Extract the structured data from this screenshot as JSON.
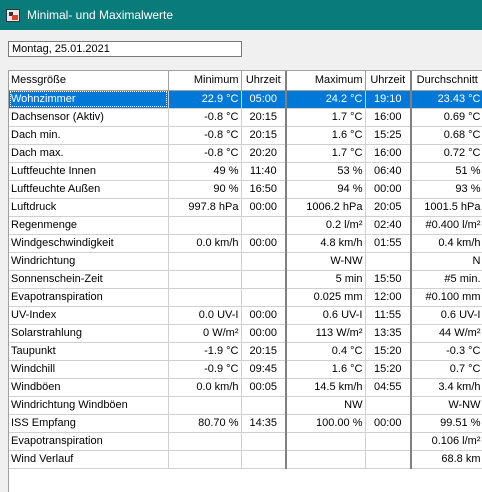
{
  "window": {
    "title": "Minimal- und Maximalwerte"
  },
  "date_field": {
    "value": "Montag, 25.01.2021"
  },
  "table": {
    "headers": {
      "name": "Messgröße",
      "min": "Minimum",
      "min_time": "Uhrzeit",
      "max": "Maximum",
      "max_time": "Uhrzeit",
      "avg": "Durchschnitt"
    },
    "rows": [
      {
        "name": "Wohnzimmer",
        "min": "22.9 °C",
        "min_time": "05:00",
        "max": "24.2 °C",
        "max_time": "19:10",
        "avg": "23.43 °C",
        "selected": true
      },
      {
        "name": "Dachsensor (Aktiv)",
        "min": "-0.8 °C",
        "min_time": "20:15",
        "max": "1.7 °C",
        "max_time": "16:00",
        "avg": "0.69 °C"
      },
      {
        "name": "Dach min.",
        "min": "-0.8 °C",
        "min_time": "20:15",
        "max": "1.6 °C",
        "max_time": "15:25",
        "avg": "0.68 °C"
      },
      {
        "name": "Dach max.",
        "min": "-0.8 °C",
        "min_time": "20:20",
        "max": "1.7 °C",
        "max_time": "16:00",
        "avg": "0.72 °C"
      },
      {
        "name": "Luftfeuchte Innen",
        "min": "49 %",
        "min_time": "11:40",
        "max": "53 %",
        "max_time": "06:40",
        "avg": "51 %"
      },
      {
        "name": "Luftfeuchte Außen",
        "min": "90 %",
        "min_time": "16:50",
        "max": "94 %",
        "max_time": "00:00",
        "avg": "93 %"
      },
      {
        "name": "Luftdruck",
        "min": "997.8 hPa",
        "min_time": "00:00",
        "max": "1006.2 hPa",
        "max_time": "20:05",
        "avg": "1001.5 hPa"
      },
      {
        "name": "Regenmenge",
        "min": "",
        "min_time": "",
        "max": "0.2 l/m²",
        "max_time": "02:40",
        "avg": "#0.400 l/m²"
      },
      {
        "name": "Windgeschwindigkeit",
        "min": "0.0 km/h",
        "min_time": "00:00",
        "max": "4.8 km/h",
        "max_time": "01:55",
        "avg": "0.4 km/h"
      },
      {
        "name": "Windrichtung",
        "min": "",
        "min_time": "",
        "max": "W-NW",
        "max_time": "",
        "avg": "N"
      },
      {
        "name": "Sonnenschein-Zeit",
        "min": "",
        "min_time": "",
        "max": "5 min",
        "max_time": "15:50",
        "avg": "#5 min."
      },
      {
        "name": "Evapotranspiration",
        "min": "",
        "min_time": "",
        "max": "0.025 mm",
        "max_time": "12:00",
        "avg": "#0.100 mm"
      },
      {
        "name": "UV-Index",
        "min": "0.0 UV-I",
        "min_time": "00:00",
        "max": "0.6 UV-I",
        "max_time": "11:55",
        "avg": "0.6 UV-I"
      },
      {
        "name": "Solarstrahlung",
        "min": "0 W/m²",
        "min_time": "00:00",
        "max": "113 W/m²",
        "max_time": "13:35",
        "avg": "44 W/m²"
      },
      {
        "name": "Taupunkt",
        "min": "-1.9 °C",
        "min_time": "20:15",
        "max": "0.4 °C",
        "max_time": "15:20",
        "avg": "-0.3 °C"
      },
      {
        "name": "Windchill",
        "min": "-0.9 °C",
        "min_time": "09:45",
        "max": "1.6 °C",
        "max_time": "15:20",
        "avg": "0.7 °C"
      },
      {
        "name": "Windböen",
        "min": "0.0 km/h",
        "min_time": "00:05",
        "max": "14.5 km/h",
        "max_time": "04:55",
        "avg": "3.4 km/h"
      },
      {
        "name": "Windrichtung Windböen",
        "min": "",
        "min_time": "",
        "max": "NW",
        "max_time": "",
        "avg": "W-NW"
      },
      {
        "name": "ISS Empfang",
        "min": "80.70 %",
        "min_time": "14:35",
        "max": "100.00 %",
        "max_time": "00:00",
        "avg": "99.51 %"
      },
      {
        "name": "Evapotranspiration",
        "min": "",
        "min_time": "",
        "max": "",
        "max_time": "",
        "avg": "0.106 l/m²"
      },
      {
        "name": "Wind Verlauf",
        "min": "",
        "min_time": "",
        "max": "",
        "max_time": "",
        "avg": "68.8 km"
      }
    ]
  },
  "colors": {
    "titlebar": "#0a7b7b",
    "selection": "#0078d7"
  }
}
